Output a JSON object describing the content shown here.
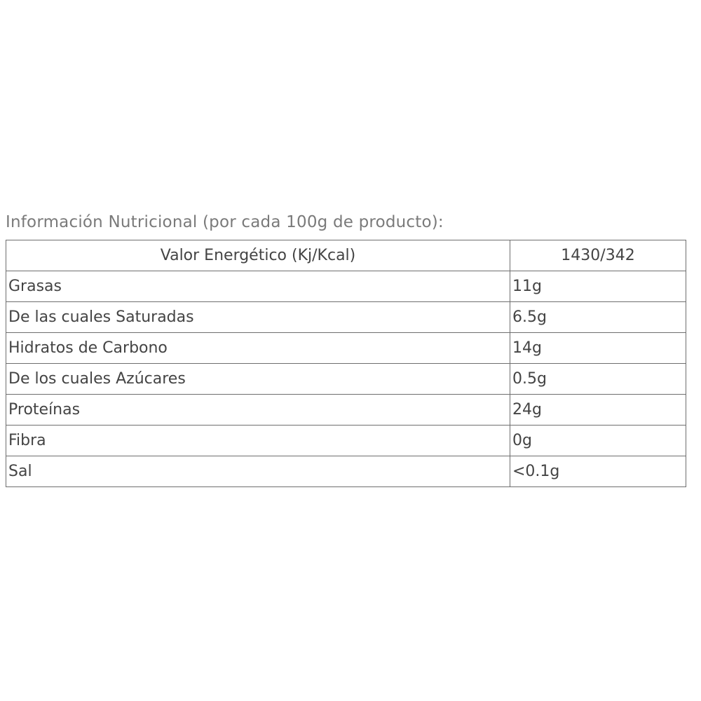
{
  "title": "Información  Nutricional (por cada 100g de producto):",
  "header": {
    "label": "Valor Energético (Kj/Kcal)",
    "value": "1430/342"
  },
  "rows": [
    {
      "label": "Grasas",
      "value": "11g"
    },
    {
      "label": "De las cuales Saturadas",
      "value": "6.5g"
    },
    {
      "label": "Hidratos de Carbono",
      "value": "14g"
    },
    {
      "label": "De los cuales Azúcares",
      "value": "0.5g"
    },
    {
      "label": "Proteínas",
      "value": "24g"
    },
    {
      "label": "Fibra",
      "value": "0g"
    },
    {
      "label": "Sal",
      "value": "<0.1g"
    }
  ]
}
